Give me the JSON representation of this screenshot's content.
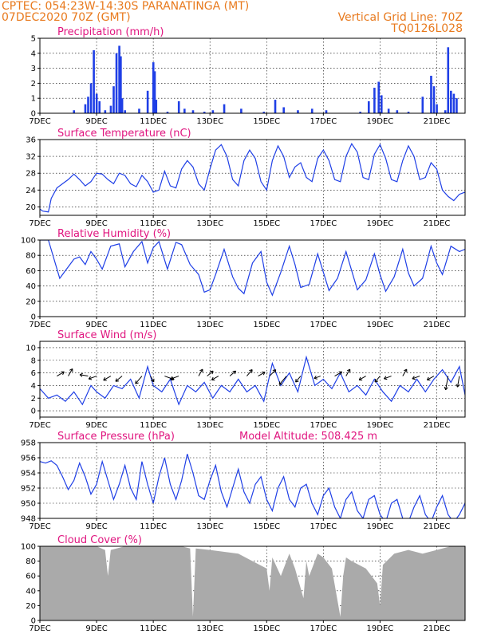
{
  "header": {
    "left_line1": "CPTEC:   054:23W-14:30S   PARANATINGA (MT)",
    "left_line2": "07DEC2020 70Z (GMT)",
    "right_line1": "Vertical Grid Line: 70Z",
    "right_line2": "TQ0126L028"
  },
  "colors": {
    "series": "#1f3fe6",
    "header": "#e87a1e",
    "title": "#e0157f",
    "cloud": "#aaaaaa"
  },
  "chart_data": [
    {
      "type": "bar",
      "title": "Precipitation (mm/h)",
      "xticks": [
        "7DEC",
        "9DEC",
        "11DEC",
        "13DEC",
        "15DEC",
        "17DEC",
        "19DEC",
        "21DEC"
      ],
      "ylim": [
        0,
        5
      ],
      "yticks": [
        0,
        1,
        2,
        3,
        4,
        5
      ],
      "x_day": [
        8.2,
        8.6,
        8.7,
        8.8,
        8.9,
        9.0,
        9.1,
        9.3,
        9.5,
        9.6,
        9.7,
        9.8,
        9.85,
        9.9,
        10.0,
        10.5,
        10.8,
        11.0,
        11.05,
        11.1,
        11.5,
        11.9,
        12.1,
        12.4,
        12.8,
        13.1,
        13.5,
        14.1,
        14.9,
        15.3,
        15.6,
        16.1,
        16.6,
        17.1,
        18.3,
        18.6,
        18.8,
        18.95,
        19.05,
        19.3,
        19.6,
        20.0,
        20.5,
        20.8,
        20.9,
        21.0,
        21.3,
        21.4,
        21.5,
        21.6,
        21.7
      ],
      "values": [
        0.2,
        0.6,
        1.1,
        2.0,
        4.2,
        1.3,
        0.8,
        0.2,
        0.5,
        1.8,
        4.0,
        4.5,
        3.8,
        1.0,
        0.2,
        0.3,
        1.5,
        3.4,
        2.8,
        0.9,
        0.1,
        0.8,
        0.3,
        0.2,
        0.1,
        0.2,
        0.6,
        0.3,
        0.1,
        0.9,
        0.4,
        0.2,
        0.3,
        0.2,
        0.1,
        0.8,
        1.7,
        2.1,
        1.2,
        0.3,
        0.2,
        0.1,
        1.1,
        2.5,
        1.8,
        0.6,
        0.2,
        4.4,
        1.5,
        1.3,
        1.0
      ]
    },
    {
      "type": "line",
      "title": "Surface Temperature (nC)",
      "xticks": [
        "7DEC",
        "9DEC",
        "11DEC",
        "13DEC",
        "15DEC",
        "17DEC",
        "19DEC",
        "21DEC"
      ],
      "ylim": [
        18,
        36
      ],
      "yticks": [
        20,
        24,
        28,
        32,
        36
      ],
      "x_day": [
        7.0,
        7.1,
        7.3,
        7.4,
        7.6,
        7.8,
        8.0,
        8.2,
        8.4,
        8.6,
        8.8,
        9.0,
        9.2,
        9.4,
        9.6,
        9.8,
        10.0,
        10.2,
        10.4,
        10.6,
        10.8,
        11.0,
        11.2,
        11.4,
        11.6,
        11.8,
        12.0,
        12.2,
        12.4,
        12.6,
        12.8,
        13.0,
        13.2,
        13.4,
        13.6,
        13.8,
        14.0,
        14.2,
        14.4,
        14.6,
        14.8,
        15.0,
        15.2,
        15.4,
        15.6,
        15.8,
        16.0,
        16.2,
        16.4,
        16.6,
        16.8,
        17.0,
        17.2,
        17.4,
        17.6,
        17.8,
        18.0,
        18.2,
        18.4,
        18.6,
        18.8,
        19.0,
        19.2,
        19.4,
        19.6,
        19.8,
        20.0,
        20.2,
        20.4,
        20.6,
        20.8,
        21.0,
        21.2,
        21.4,
        21.6,
        21.8,
        22.0
      ],
      "values": [
        19.5,
        19.0,
        18.8,
        22.0,
        24.5,
        25.5,
        26.5,
        27.8,
        26.5,
        25.0,
        26.0,
        28.0,
        27.8,
        26.5,
        25.5,
        28.0,
        27.5,
        25.5,
        24.8,
        27.5,
        26.0,
        23.5,
        24.0,
        28.5,
        25.0,
        24.5,
        29.0,
        31.0,
        29.5,
        25.5,
        24.0,
        29.0,
        33.5,
        34.8,
        32.0,
        26.5,
        25.0,
        31.0,
        33.5,
        31.5,
        26.0,
        24.0,
        31.0,
        34.5,
        32.0,
        27.0,
        29.5,
        30.5,
        27.0,
        26.0,
        31.5,
        33.5,
        31.0,
        26.5,
        26.0,
        32.0,
        35.0,
        33.0,
        27.0,
        26.5,
        32.5,
        34.8,
        31.5,
        26.5,
        26.0,
        31.0,
        34.5,
        32.0,
        26.5,
        27.0,
        30.5,
        29.0,
        24.0,
        22.5,
        21.5,
        23.0,
        23.5
      ]
    },
    {
      "type": "line",
      "title": "Relative Humidity (%)",
      "xticks": [
        "7DEC",
        "9DEC",
        "11DEC",
        "13DEC",
        "15DEC",
        "17DEC",
        "19DEC",
        "21DEC"
      ],
      "ylim": [
        0,
        100
      ],
      "yticks": [
        0,
        20,
        40,
        60,
        80,
        100
      ],
      "x_day": [
        7.0,
        7.3,
        7.5,
        7.7,
        7.9,
        8.2,
        8.4,
        8.6,
        8.8,
        9.0,
        9.2,
        9.5,
        9.8,
        10.0,
        10.3,
        10.6,
        10.8,
        11.0,
        11.2,
        11.5,
        11.8,
        12.0,
        12.3,
        12.6,
        12.8,
        13.0,
        13.2,
        13.5,
        13.8,
        14.0,
        14.2,
        14.5,
        14.8,
        15.0,
        15.2,
        15.5,
        15.8,
        16.0,
        16.2,
        16.5,
        16.8,
        17.0,
        17.2,
        17.5,
        17.8,
        18.0,
        18.2,
        18.5,
        18.8,
        19.0,
        19.2,
        19.5,
        19.8,
        20.0,
        20.2,
        20.5,
        20.8,
        21.0,
        21.2,
        21.5,
        21.8,
        22.0
      ],
      "values": [
        100,
        100,
        75,
        50,
        60,
        75,
        78,
        68,
        85,
        75,
        62,
        92,
        95,
        65,
        85,
        98,
        70,
        90,
        98,
        62,
        97,
        94,
        68,
        55,
        32,
        35,
        55,
        88,
        52,
        37,
        30,
        70,
        85,
        45,
        28,
        58,
        92,
        68,
        38,
        42,
        82,
        58,
        34,
        50,
        85,
        60,
        35,
        48,
        82,
        55,
        33,
        52,
        88,
        57,
        40,
        50,
        92,
        70,
        55,
        92,
        85,
        88
      ]
    },
    {
      "type": "line",
      "title": "Surface Wind (m/s)",
      "xticks": [
        "7DEC",
        "9DEC",
        "11DEC",
        "13DEC",
        "15DEC",
        "17DEC",
        "19DEC",
        "21DEC"
      ],
      "ylim": [
        -1,
        11
      ],
      "yticks": [
        0,
        2,
        4,
        6,
        8,
        10
      ],
      "x_day": [
        7.0,
        7.3,
        7.6,
        7.9,
        8.2,
        8.5,
        8.8,
        9.0,
        9.3,
        9.6,
        9.9,
        10.2,
        10.5,
        10.8,
        11.0,
        11.3,
        11.6,
        11.9,
        12.2,
        12.5,
        12.8,
        13.1,
        13.4,
        13.7,
        14.0,
        14.3,
        14.6,
        14.9,
        15.2,
        15.5,
        15.8,
        16.1,
        16.4,
        16.7,
        17.0,
        17.3,
        17.6,
        17.9,
        18.2,
        18.5,
        18.8,
        19.1,
        19.4,
        19.7,
        20.0,
        20.3,
        20.6,
        20.9,
        21.2,
        21.5,
        21.8,
        22.0
      ],
      "values": [
        3.5,
        2.0,
        2.5,
        1.5,
        3.0,
        1.0,
        4.0,
        3.0,
        2.0,
        4.0,
        3.5,
        5.0,
        2.0,
        7.0,
        4.0,
        3.0,
        5.0,
        1.0,
        4.0,
        3.0,
        4.5,
        2.0,
        4.0,
        3.0,
        5.0,
        3.0,
        4.0,
        1.5,
        7.5,
        4.0,
        6.0,
        3.0,
        8.5,
        4.0,
        5.0,
        3.5,
        6.0,
        3.0,
        4.0,
        2.5,
        5.0,
        3.0,
        1.5,
        4.0,
        3.0,
        5.0,
        3.0,
        5.0,
        6.5,
        4.5,
        7.0,
        2.5
      ],
      "arrows_x_day": [
        7.6,
        8.0,
        8.7,
        9.0,
        9.5,
        9.9,
        10.6,
        10.9,
        11.4,
        11.9,
        12.6,
        12.9,
        13.3,
        13.7,
        14.3,
        14.7,
        15.1,
        15.7,
        16.2,
        16.9,
        17.4,
        17.8,
        18.5,
        19.0,
        19.4,
        19.8,
        20.4,
        20.9,
        21.4,
        21.8
      ],
      "arrows_dir_deg": [
        30,
        60,
        170,
        200,
        210,
        220,
        230,
        300,
        340,
        200,
        60,
        40,
        210,
        40,
        50,
        30,
        45,
        230,
        230,
        200,
        30,
        60,
        210,
        230,
        200,
        60,
        200,
        210,
        260,
        260
      ],
      "arrows_speed": [
        1.5,
        1.5,
        1.5,
        1.5,
        1.5,
        1.5,
        1.8,
        1.2,
        1.8,
        1.6,
        1.4,
        1.4,
        1.4,
        1.4,
        1.5,
        1.4,
        1.6,
        2.0,
        1.4,
        1.2,
        1.5,
        1.4,
        1.4,
        1.4,
        1.4,
        1.4,
        1.4,
        1.4,
        2.5,
        2.0
      ]
    },
    {
      "type": "line",
      "title": "Surface Pressure (hPa)",
      "subtitle": "Model Altitude: 508.425 m",
      "xticks": [
        "7DEC",
        "9DEC",
        "11DEC",
        "13DEC",
        "15DEC",
        "17DEC",
        "19DEC",
        "21DEC"
      ],
      "ylim": [
        948,
        958
      ],
      "yticks": [
        948,
        950,
        952,
        954,
        956,
        958
      ],
      "x_day": [
        7.0,
        7.2,
        7.4,
        7.6,
        7.8,
        8.0,
        8.2,
        8.4,
        8.6,
        8.8,
        9.0,
        9.2,
        9.4,
        9.6,
        9.8,
        10.0,
        10.2,
        10.4,
        10.6,
        10.8,
        11.0,
        11.2,
        11.4,
        11.6,
        11.8,
        12.0,
        12.2,
        12.4,
        12.6,
        12.8,
        13.0,
        13.2,
        13.4,
        13.6,
        13.8,
        14.0,
        14.2,
        14.4,
        14.6,
        14.8,
        15.0,
        15.2,
        15.4,
        15.6,
        15.8,
        16.0,
        16.2,
        16.4,
        16.6,
        16.8,
        17.0,
        17.2,
        17.4,
        17.6,
        17.8,
        18.0,
        18.2,
        18.4,
        18.6,
        18.8,
        19.0,
        19.2,
        19.4,
        19.6,
        19.8,
        20.0,
        20.2,
        20.4,
        20.6,
        20.8,
        21.0,
        21.2,
        21.4,
        21.6,
        21.8,
        22.0
      ],
      "values": [
        955.5,
        955.3,
        955.6,
        955.0,
        953.5,
        951.8,
        953.0,
        955.3,
        953.5,
        951.2,
        952.5,
        955.5,
        953.0,
        950.5,
        952.5,
        955.0,
        952.0,
        950.5,
        955.5,
        952.5,
        950.0,
        953.5,
        956.0,
        952.5,
        950.5,
        953.0,
        956.5,
        954.0,
        951.0,
        950.5,
        953.0,
        955.0,
        951.5,
        949.5,
        952.0,
        954.5,
        951.5,
        950.0,
        952.5,
        953.5,
        950.5,
        949.0,
        952.0,
        953.5,
        950.5,
        949.5,
        952.0,
        952.5,
        950.0,
        948.5,
        951.0,
        952.0,
        949.5,
        948.0,
        950.5,
        951.5,
        949.0,
        948.0,
        950.5,
        951.0,
        948.5,
        947.5,
        950.0,
        950.5,
        948.0,
        947.5,
        949.5,
        951.0,
        948.5,
        947.5,
        949.5,
        951.0,
        948.5,
        947.5,
        948.5,
        950.0
      ]
    },
    {
      "type": "area",
      "title": "Cloud Cover (%)",
      "xticks": [
        "7DEC",
        "9DEC",
        "11DEC",
        "13DEC",
        "15DEC",
        "17DEC",
        "19DEC",
        "21DEC"
      ],
      "ylim": [
        0,
        100
      ],
      "yticks": [
        0,
        20,
        40,
        60,
        80,
        100
      ],
      "x_day": [
        7.0,
        8.0,
        9.0,
        9.3,
        9.4,
        9.5,
        10.0,
        11.0,
        12.0,
        12.3,
        12.4,
        12.5,
        13.0,
        14.0,
        14.5,
        15.0,
        15.1,
        15.2,
        15.5,
        15.8,
        16.0,
        16.3,
        16.4,
        16.5,
        16.8,
        17.0,
        17.3,
        17.6,
        17.7,
        17.8,
        18.0,
        18.5,
        18.9,
        19.0,
        19.1,
        19.5,
        20.0,
        20.5,
        21.0,
        21.5,
        22.0
      ],
      "values": [
        100,
        100,
        100,
        95,
        60,
        95,
        100,
        100,
        100,
        97,
        5,
        97,
        95,
        90,
        80,
        70,
        40,
        85,
        60,
        90,
        70,
        30,
        80,
        60,
        90,
        85,
        70,
        5,
        60,
        85,
        80,
        70,
        50,
        20,
        75,
        90,
        95,
        90,
        95,
        100,
        100
      ]
    }
  ]
}
